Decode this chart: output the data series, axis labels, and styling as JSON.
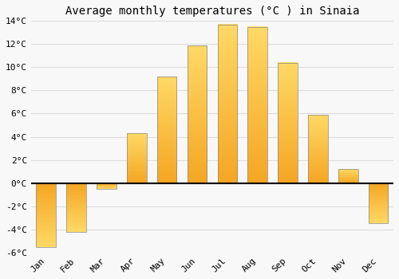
{
  "title": "Average monthly temperatures (°C ) in Sinaia",
  "months": [
    "Jan",
    "Feb",
    "Mar",
    "Apr",
    "May",
    "Jun",
    "Jul",
    "Aug",
    "Sep",
    "Oct",
    "Nov",
    "Dec"
  ],
  "values": [
    -5.5,
    -4.2,
    -0.5,
    4.3,
    9.2,
    11.9,
    13.7,
    13.5,
    10.4,
    5.9,
    1.2,
    -3.5
  ],
  "bar_color_bottom": "#F5A623",
  "bar_color_top": "#FFD966",
  "bar_edge_color": "#888888",
  "ylim": [
    -6,
    14
  ],
  "yticks": [
    -6,
    -4,
    -2,
    0,
    2,
    4,
    6,
    8,
    10,
    12,
    14
  ],
  "background_color": "#f8f8f8",
  "grid_color": "#dddddd",
  "title_fontsize": 10,
  "tick_fontsize": 8,
  "bar_width": 0.65
}
